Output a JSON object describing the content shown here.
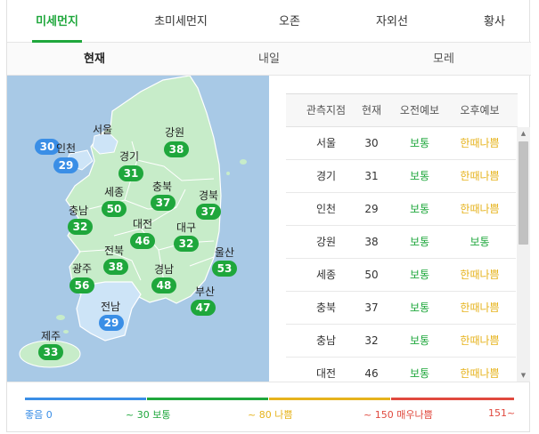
{
  "tabs": [
    {
      "label": "미세먼지",
      "active": true
    },
    {
      "label": "초미세먼지",
      "active": false
    },
    {
      "label": "오존",
      "active": false
    },
    {
      "label": "자외선",
      "active": false
    },
    {
      "label": "황사",
      "active": false
    }
  ],
  "subtabs": [
    {
      "label": "현재",
      "active": true
    },
    {
      "label": "내일",
      "active": false
    },
    {
      "label": "모레",
      "active": false
    }
  ],
  "map": {
    "regions": [
      {
        "name": "서울",
        "value": "30",
        "level": "good"
      },
      {
        "name": "인천",
        "value": "29",
        "level": "good"
      },
      {
        "name": "경기",
        "value": "31",
        "level": "normal"
      },
      {
        "name": "강원",
        "value": "38",
        "level": "normal"
      },
      {
        "name": "세종",
        "value": "50",
        "level": "normal"
      },
      {
        "name": "충북",
        "value": "37",
        "level": "normal"
      },
      {
        "name": "충남",
        "value": "32",
        "level": "normal"
      },
      {
        "name": "경북",
        "value": "37",
        "level": "normal"
      },
      {
        "name": "대전",
        "value": "46",
        "level": "normal"
      },
      {
        "name": "대구",
        "value": "32",
        "level": "normal"
      },
      {
        "name": "전북",
        "value": "38",
        "level": "normal"
      },
      {
        "name": "울산",
        "value": "53",
        "level": "normal"
      },
      {
        "name": "광주",
        "value": "56",
        "level": "normal"
      },
      {
        "name": "경남",
        "value": "48",
        "level": "normal"
      },
      {
        "name": "부산",
        "value": "47",
        "level": "normal"
      },
      {
        "name": "전남",
        "value": "29",
        "level": "good"
      },
      {
        "name": "제주",
        "value": "33",
        "level": "normal"
      }
    ],
    "colors": {
      "good_land": "#cde4f7",
      "normal_land": "#c7ecc9",
      "sea": "#a8c9e6",
      "good_badge": "#3a8ee6",
      "normal_badge": "#1fa73c"
    }
  },
  "table": {
    "headers": [
      "관측지점",
      "현재",
      "오전예보",
      "오후예보"
    ],
    "rows": [
      {
        "name": "서울",
        "now": "30",
        "am": "보통",
        "am_level": "normal",
        "pm": "한때나쁨",
        "pm_level": "bad"
      },
      {
        "name": "경기",
        "now": "31",
        "am": "보통",
        "am_level": "normal",
        "pm": "한때나쁨",
        "pm_level": "bad"
      },
      {
        "name": "인천",
        "now": "29",
        "am": "보통",
        "am_level": "normal",
        "pm": "한때나쁨",
        "pm_level": "bad"
      },
      {
        "name": "강원",
        "now": "38",
        "am": "보통",
        "am_level": "normal",
        "pm": "보통",
        "pm_level": "normal"
      },
      {
        "name": "세종",
        "now": "50",
        "am": "보통",
        "am_level": "normal",
        "pm": "한때나쁨",
        "pm_level": "bad"
      },
      {
        "name": "충북",
        "now": "37",
        "am": "보통",
        "am_level": "normal",
        "pm": "한때나쁨",
        "pm_level": "bad"
      },
      {
        "name": "충남",
        "now": "32",
        "am": "보통",
        "am_level": "normal",
        "pm": "한때나쁨",
        "pm_level": "bad"
      },
      {
        "name": "대전",
        "now": "46",
        "am": "보통",
        "am_level": "normal",
        "pm": "한때나쁨",
        "pm_level": "bad"
      }
    ]
  },
  "legend": [
    {
      "label": "좋음 0",
      "color": "#3a8ee6"
    },
    {
      "label": "~ 30 보통",
      "color": "#1fa73c"
    },
    {
      "label": "~ 80 나쁨",
      "color": "#e6b31c"
    },
    {
      "label": "~ 150 매우나쁨",
      "color": "#e0493e"
    },
    {
      "label": "151~",
      "color": "#e0493e"
    }
  ]
}
